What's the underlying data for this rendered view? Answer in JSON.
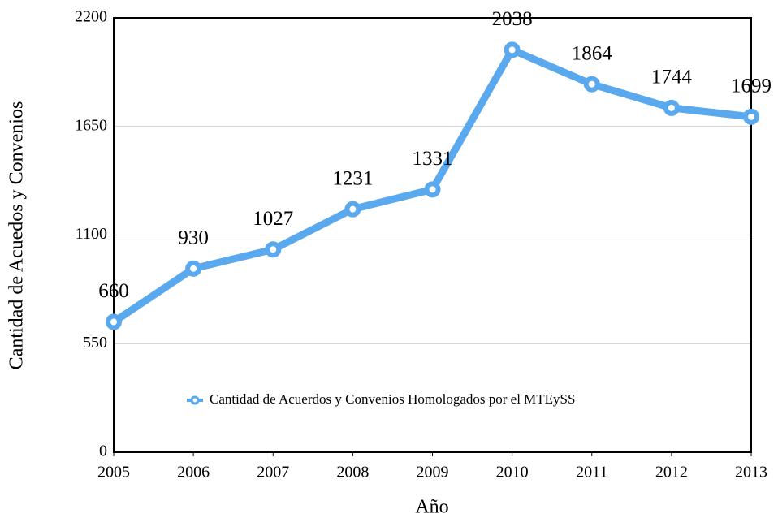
{
  "chart_data": {
    "type": "line",
    "x_label": "Año",
    "y_label": "Cantidad de Acuedos y Convenios",
    "x": [
      2005,
      2006,
      2007,
      2008,
      2009,
      2010,
      2011,
      2012,
      2013
    ],
    "xlim": [
      2005,
      2013
    ],
    "xticks": [
      2005,
      2006,
      2007,
      2008,
      2009,
      2010,
      2011,
      2012,
      2013
    ],
    "ylim": [
      0,
      2200
    ],
    "yticks": [
      0,
      550,
      1100,
      1650,
      2200
    ],
    "grid": true,
    "legend": "lower center",
    "series": [
      {
        "name": "Cantidad de Acuerdos y Convenios Homologados por el MTEySS",
        "color": "#5aa9ee",
        "values": [
          660,
          930,
          1027,
          1231,
          1331,
          2038,
          1864,
          1744,
          1699
        ]
      }
    ]
  }
}
